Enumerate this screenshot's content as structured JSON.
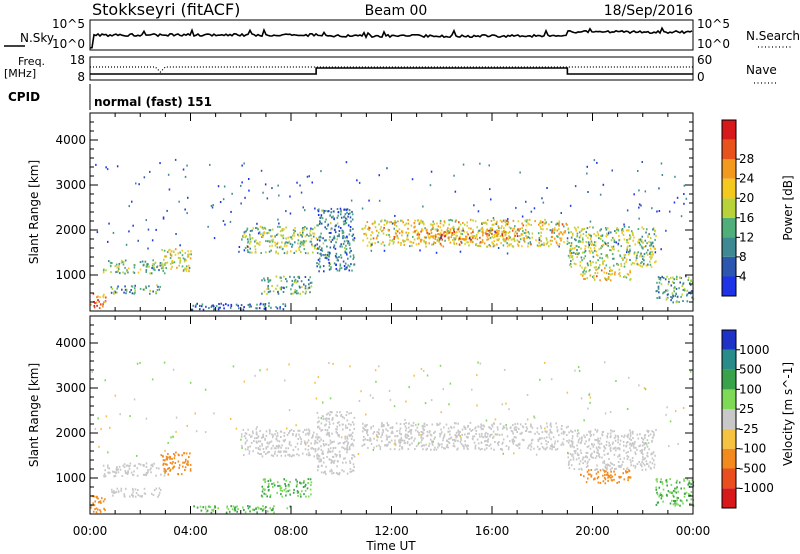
{
  "header": {
    "station": "Stokkseyri (fitACF)",
    "beam": "Beam 00",
    "date": "18/Sep/2016"
  },
  "status_panels": {
    "nsky_label": "N.Sky",
    "nsky_ticks": [
      "10^5",
      "10^0"
    ],
    "nsearch_label": "N.Search",
    "freq_label_top": "Freq.",
    "freq_label_unit": "[MHz]",
    "freq_ticks": [
      "18",
      "8"
    ],
    "nave_label": "Nave",
    "nave_ticks": [
      "60",
      "0"
    ],
    "cpid_label": "CPID",
    "cpid_text": "normal (fast) 151"
  },
  "x_axis": {
    "label": "Time UT",
    "ticks": [
      "00:00",
      "04:00",
      "08:00",
      "12:00",
      "16:00",
      "20:00",
      "00:00"
    ]
  },
  "y_axis": {
    "label": "Slant Range [km]",
    "ticks": [
      "1000",
      "2000",
      "3000",
      "4000"
    ],
    "range_km": [
      200,
      4600
    ]
  },
  "power_scale": {
    "label": "Power [dB]",
    "ticks": [
      "4",
      "8",
      "12",
      "16",
      "20",
      "24",
      "28"
    ],
    "colors": [
      "#1e32e6",
      "#2c56b0",
      "#3f8a92",
      "#4fae7a",
      "#b8d23a",
      "#f5c81e",
      "#f39a1e",
      "#e8521c",
      "#d7191c"
    ]
  },
  "velocity_scale": {
    "label": "Velocity [m s^-1]",
    "ticks": [
      "1000",
      "500",
      "100",
      "25",
      "-25",
      "-100",
      "-500",
      "-1000"
    ],
    "colors": [
      "#1e32c8",
      "#2a8b8b",
      "#3aa24a",
      "#7ed957",
      "#c8c8c8",
      "#f5c242",
      "#f28a1e",
      "#ea4d1e",
      "#d7191c"
    ]
  },
  "chart_data": [
    {
      "type": "heatmap",
      "title": "Power",
      "xlabel": "Time UT",
      "ylabel": "Slant Range [km]",
      "colorbar_label": "Power [dB]",
      "xlim_hours": [
        0,
        24
      ],
      "ylim_km": [
        200,
        4600
      ],
      "regions": [
        {
          "t0": 0.0,
          "t1": 0.6,
          "r0": 250,
          "r1": 650,
          "p": 24
        },
        {
          "t0": 0.5,
          "t1": 3.0,
          "r0": 1050,
          "r1": 1350,
          "p": 12
        },
        {
          "t0": 0.8,
          "t1": 2.8,
          "r0": 600,
          "r1": 800,
          "p": 10
        },
        {
          "t0": 2.8,
          "t1": 4.0,
          "r0": 1100,
          "r1": 1600,
          "p": 16
        },
        {
          "t0": 4.0,
          "t1": 8.0,
          "r0": 250,
          "r1": 400,
          "p": 6
        },
        {
          "t0": 6.0,
          "t1": 9.0,
          "r0": 1500,
          "r1": 2100,
          "p": 14
        },
        {
          "t0": 6.8,
          "t1": 8.8,
          "r0": 600,
          "r1": 1000,
          "p": 12
        },
        {
          "t0": 9.0,
          "t1": 10.5,
          "r0": 1100,
          "r1": 2500,
          "p": 8
        },
        {
          "t0": 10.8,
          "t1": 19.0,
          "r0": 1650,
          "r1": 2250,
          "p": 18
        },
        {
          "t0": 13.0,
          "t1": 17.0,
          "r0": 1800,
          "r1": 2050,
          "p": 22
        },
        {
          "t0": 19.0,
          "t1": 22.5,
          "r0": 1200,
          "r1": 2100,
          "p": 14
        },
        {
          "t0": 19.5,
          "t1": 21.5,
          "r0": 900,
          "r1": 1200,
          "p": 18
        },
        {
          "t0": 22.5,
          "t1": 24.0,
          "r0": 400,
          "r1": 1000,
          "p": 10
        }
      ]
    },
    {
      "type": "heatmap",
      "title": "Velocity",
      "xlabel": "Time UT",
      "ylabel": "Slant Range [km]",
      "colorbar_label": "Velocity [m s^-1]",
      "xlim_hours": [
        0,
        24
      ],
      "ylim_km": [
        200,
        4600
      ],
      "regions": [
        {
          "t0": 0.0,
          "t1": 0.6,
          "r0": 250,
          "r1": 650,
          "v": -100
        },
        {
          "t0": 0.5,
          "t1": 3.0,
          "r0": 1050,
          "r1": 1350,
          "v": 0
        },
        {
          "t0": 0.8,
          "t1": 2.8,
          "r0": 600,
          "r1": 800,
          "v": 0
        },
        {
          "t0": 2.8,
          "t1": 4.0,
          "r0": 1100,
          "r1": 1600,
          "v": -200
        },
        {
          "t0": 4.0,
          "t1": 8.0,
          "r0": 250,
          "r1": 400,
          "v": 60
        },
        {
          "t0": 6.0,
          "t1": 9.0,
          "r0": 1500,
          "r1": 2100,
          "v": 0
        },
        {
          "t0": 6.8,
          "t1": 8.8,
          "r0": 600,
          "r1": 1000,
          "v": 60
        },
        {
          "t0": 9.0,
          "t1": 10.5,
          "r0": 1100,
          "r1": 2500,
          "v": 0
        },
        {
          "t0": 10.8,
          "t1": 19.0,
          "r0": 1650,
          "r1": 2250,
          "v": 0
        },
        {
          "t0": 19.0,
          "t1": 22.5,
          "r0": 1200,
          "r1": 2100,
          "v": 0
        },
        {
          "t0": 19.5,
          "t1": 21.5,
          "r0": 900,
          "r1": 1200,
          "v": -200
        },
        {
          "t0": 22.5,
          "t1": 24.0,
          "r0": 400,
          "r1": 1000,
          "v": 60
        }
      ]
    }
  ]
}
